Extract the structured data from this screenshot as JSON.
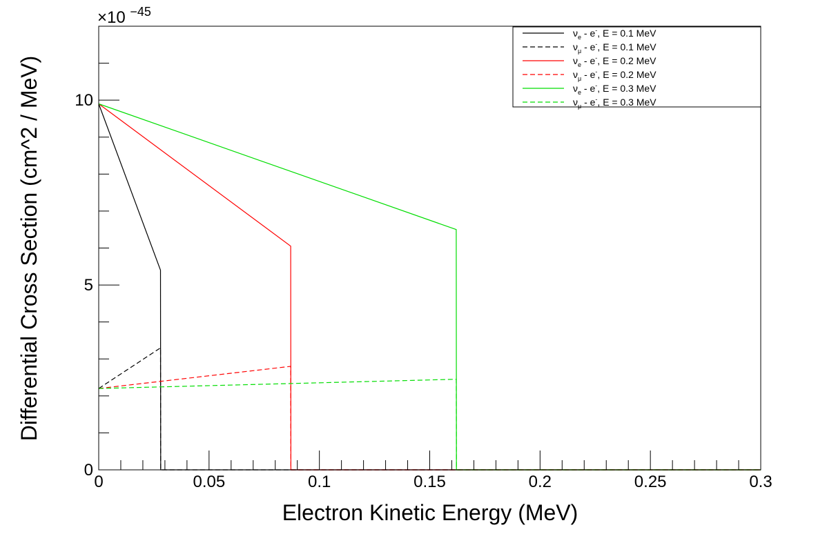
{
  "chart_data": {
    "type": "line",
    "title": "",
    "xlabel": "Electron Kinetic Energy (MeV)",
    "ylabel": "Differential Cross Section (cm^2 / MeV)",
    "y_multiplier_label": "×10",
    "y_multiplier_exponent": "−45",
    "xlim": [
      0,
      0.3
    ],
    "ylim": [
      0,
      12
    ],
    "x_ticks": [
      {
        "value": 0,
        "label": "0"
      },
      {
        "value": 0.05,
        "label": "0.05"
      },
      {
        "value": 0.1,
        "label": "0.1"
      },
      {
        "value": 0.15,
        "label": "0.15"
      },
      {
        "value": 0.2,
        "label": "0.2"
      },
      {
        "value": 0.25,
        "label": "0.25"
      },
      {
        "value": 0.3,
        "label": "0.3"
      }
    ],
    "y_ticks": [
      {
        "value": 0,
        "label": "0"
      },
      {
        "value": 5,
        "label": "5"
      },
      {
        "value": 10,
        "label": "10"
      }
    ],
    "grid": false,
    "legend_position": "top-right",
    "series": [
      {
        "name": "νe - e-, E = 0.1 MeV",
        "nu": "ν",
        "flavor": "e",
        "rest": " - e",
        "sup": "-",
        "tail": ", E = 0.1 MeV",
        "color": "#000000",
        "dash": "solid",
        "x": [
          0,
          0.028,
          0.0281,
          0.3
        ],
        "y": [
          9.9,
          5.4,
          0,
          0
        ]
      },
      {
        "name": "νμ - e-, E = 0.1 MeV",
        "nu": "ν",
        "flavor": "μ",
        "rest": " - e",
        "sup": "-",
        "tail": ", E = 0.1 MeV",
        "color": "#000000",
        "dash": "dashed",
        "x": [
          0,
          0.028,
          0.0281,
          0.3
        ],
        "y": [
          2.2,
          3.3,
          0,
          0
        ]
      },
      {
        "name": "νe - e-, E = 0.2 MeV",
        "nu": "ν",
        "flavor": "e",
        "rest": " - e",
        "sup": "-",
        "tail": ", E = 0.2 MeV",
        "color": "#ff0000",
        "dash": "solid",
        "x": [
          0,
          0.087,
          0.0871,
          0.3
        ],
        "y": [
          9.9,
          6.05,
          0,
          0
        ]
      },
      {
        "name": "νμ - e-, E = 0.2 MeV",
        "nu": "ν",
        "flavor": "μ",
        "rest": " - e",
        "sup": "-",
        "tail": ", E = 0.2 MeV",
        "color": "#ff0000",
        "dash": "dashed",
        "x": [
          0,
          0.087,
          0.0871,
          0.3
        ],
        "y": [
          2.2,
          2.8,
          0,
          0
        ]
      },
      {
        "name": "νe - e-, E = 0.3 MeV",
        "nu": "ν",
        "flavor": "e",
        "rest": " - e",
        "sup": "-",
        "tail": ", E = 0.3 MeV",
        "color": "#00dd00",
        "dash": "solid",
        "x": [
          0,
          0.162,
          0.1621,
          0.3
        ],
        "y": [
          9.9,
          6.5,
          0,
          0
        ]
      },
      {
        "name": "νμ - e-, E = 0.3 MeV",
        "nu": "ν",
        "flavor": "μ",
        "rest": " - e",
        "sup": "-",
        "tail": ", E = 0.3 MeV",
        "color": "#00dd00",
        "dash": "dashed",
        "x": [
          0,
          0.162,
          0.1621,
          0.3
        ],
        "y": [
          2.2,
          2.45,
          0,
          0
        ]
      }
    ]
  }
}
